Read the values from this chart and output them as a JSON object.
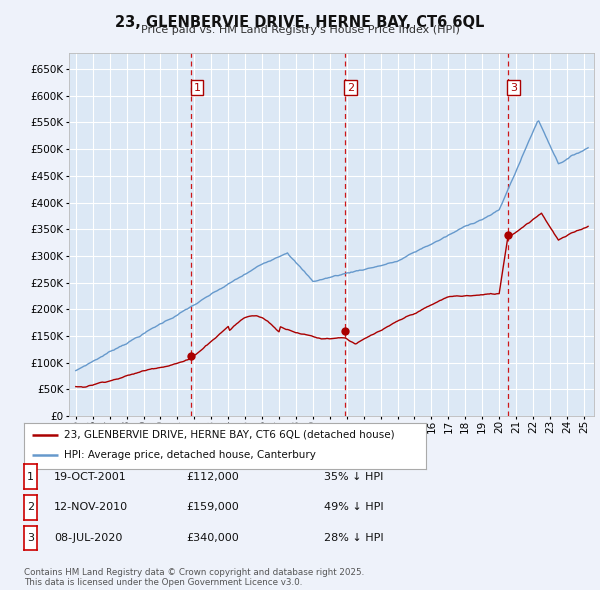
{
  "title": "23, GLENBERVIE DRIVE, HERNE BAY, CT6 6QL",
  "subtitle": "Price paid vs. HM Land Registry's House Price Index (HPI)",
  "background_color": "#eef2fa",
  "plot_bg_color": "#dce8f5",
  "grid_color": "#ffffff",
  "hpi_line_color": "#6699cc",
  "price_line_color": "#aa0000",
  "vline_color": "#cc0000",
  "ylim": [
    0,
    680000
  ],
  "yticks": [
    0,
    50000,
    100000,
    150000,
    200000,
    250000,
    300000,
    350000,
    400000,
    450000,
    500000,
    550000,
    600000,
    650000
  ],
  "year_start": 1995,
  "year_end": 2025,
  "t1_year": 2001.792,
  "t2_year": 2010.875,
  "t3_year": 2020.5,
  "p1": 112000,
  "p2": 159000,
  "p3": 340000,
  "legend_entries": [
    {
      "label": "23, GLENBERVIE DRIVE, HERNE BAY, CT6 6QL (detached house)",
      "color": "#aa0000"
    },
    {
      "label": "HPI: Average price, detached house, Canterbury",
      "color": "#6699cc"
    }
  ],
  "footer": "Contains HM Land Registry data © Crown copyright and database right 2025.\nThis data is licensed under the Open Government Licence v3.0.",
  "table_rows": [
    {
      "num": 1,
      "date": "19-OCT-2001",
      "price": "£112,000",
      "pct": "35% ↓ HPI"
    },
    {
      "num": 2,
      "date": "12-NOV-2010",
      "price": "£159,000",
      "pct": "49% ↓ HPI"
    },
    {
      "num": 3,
      "date": "08-JUL-2020",
      "price": "£340,000",
      "pct": "28% ↓ HPI"
    }
  ]
}
